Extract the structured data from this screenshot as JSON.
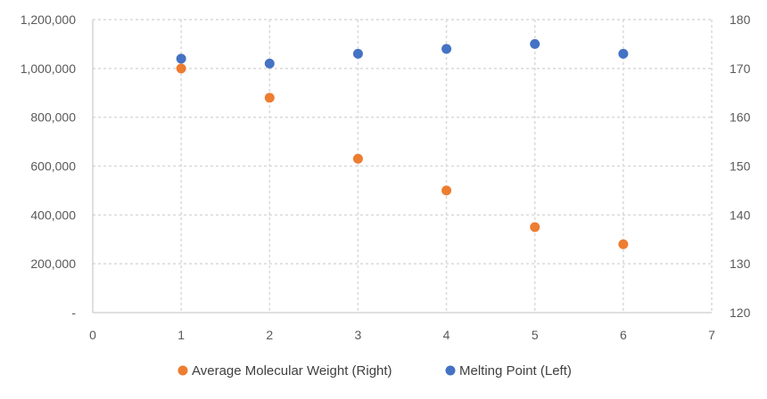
{
  "chart_data": {
    "type": "scatter",
    "title": "",
    "xlim": [
      0,
      7
    ],
    "x_ticks": [
      "0",
      "1",
      "2",
      "3",
      "4",
      "5",
      "6",
      "7"
    ],
    "ylim_left": [
      0,
      1200000
    ],
    "y_left_ticks": [
      "-",
      "200,000",
      "400,000",
      "600,000",
      "800,000",
      "1,000,000",
      "1,200,000"
    ],
    "ylim_right": [
      120,
      180
    ],
    "y_right_ticks": [
      "120",
      "130",
      "140",
      "150",
      "160",
      "170",
      "180"
    ],
    "grid": true,
    "legend_position": "bottom",
    "series": [
      {
        "name": "Average Molecular Weight (Right)",
        "axis": "right",
        "color": "#ed7d31",
        "points": [
          {
            "x": 1,
            "y": 170
          },
          {
            "x": 2,
            "y": 164
          },
          {
            "x": 3,
            "y": 151.5
          },
          {
            "x": 4,
            "y": 145
          },
          {
            "x": 5,
            "y": 137.5
          },
          {
            "x": 6,
            "y": 134
          }
        ]
      },
      {
        "name": "Melting Point (Left)",
        "axis": "left",
        "color": "#4472c4",
        "points": [
          {
            "x": 1,
            "y": 1040000
          },
          {
            "x": 2,
            "y": 1020000
          },
          {
            "x": 3,
            "y": 1060000
          },
          {
            "x": 4,
            "y": 1080000
          },
          {
            "x": 5,
            "y": 1100000
          },
          {
            "x": 6,
            "y": 1060000
          }
        ]
      }
    ]
  }
}
